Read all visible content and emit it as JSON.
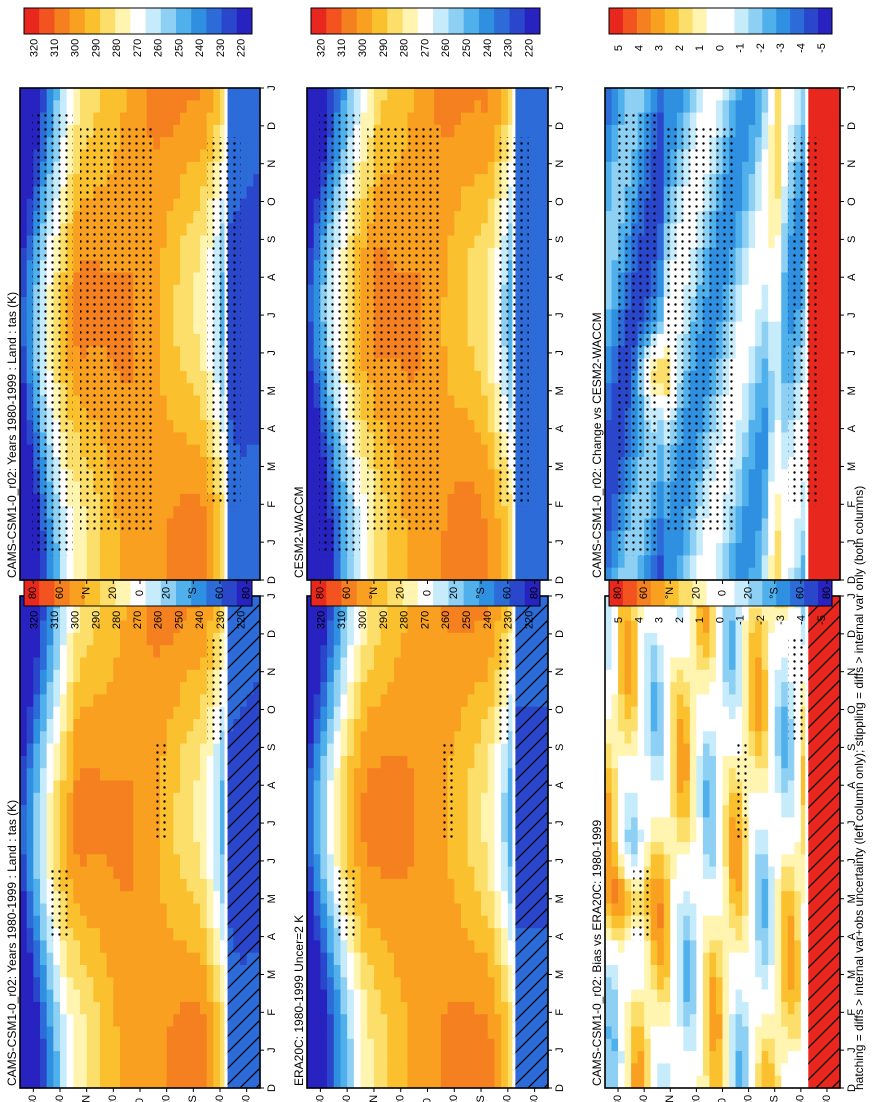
{
  "footnote": "hatching = diffs > internal var+obs uncertainty (left column only); stippling = diffs > internal var only (both columns)",
  "palettes": {
    "abs": [
      "#e8281e",
      "#f2531f",
      "#f58020",
      "#f9a021",
      "#fbc02e",
      "#fcdf6a",
      "#fff5b0",
      "#ffffff",
      "#c6ecfb",
      "#8dd0f4",
      "#4fb0ec",
      "#2f8fe0",
      "#2c6bd8",
      "#2a47cc",
      "#2722c0"
    ],
    "diff": [
      "#e8281e",
      "#f2531f",
      "#f58020",
      "#f9a021",
      "#fbc02e",
      "#fcdf6a",
      "#fff5b0",
      "#ffffff",
      "#ffffff",
      "#c6ecfb",
      "#8dd0f4",
      "#4fb0ec",
      "#2f8fe0",
      "#2c6bd8",
      "#2a47cc",
      "#2722c0"
    ]
  },
  "axes": {
    "months": [
      "D",
      "J",
      "F",
      "M",
      "A",
      "M",
      "J",
      "J",
      "A",
      "S",
      "O",
      "N",
      "D",
      "J"
    ],
    "lat_labels": [
      "80",
      "60",
      "°N",
      "20",
      "0",
      "20",
      "°S",
      "60",
      "80"
    ]
  },
  "chart_data": [
    {
      "type": "heatmap",
      "id": "p1",
      "title": "CAMS-CSM1-0_r02: Years 1980-1999 : Land : tas (K)",
      "kind": "abs",
      "model": 1,
      "hatch": true,
      "stipple": "lite",
      "colorbar": [
        "320",
        "310",
        "300",
        "290",
        "280",
        "270",
        "260",
        "250",
        "240",
        "230",
        "220"
      ]
    },
    {
      "type": "heatmap",
      "id": "p2",
      "title": "CAMS-CSM1-0_r02: Years 1980-1999 : Land : tas (K)",
      "kind": "abs",
      "model": 1,
      "hatch": false,
      "stipple": "heavy",
      "colorbar": [
        "320",
        "310",
        "300",
        "290",
        "280",
        "270",
        "260",
        "250",
        "240",
        "230",
        "220"
      ]
    },
    {
      "type": "heatmap",
      "id": "p3",
      "title": "ERA20C: 1980-1999 Uncer=2 K",
      "kind": "abs",
      "model": 0,
      "hatch": true,
      "stipple": "lite",
      "colorbar": [
        "320",
        "310",
        "300",
        "290",
        "280",
        "270",
        "260",
        "250",
        "240",
        "230",
        "220"
      ]
    },
    {
      "type": "heatmap",
      "id": "p4",
      "title": "CESM2-WACCM",
      "kind": "abs",
      "model": 2,
      "hatch": false,
      "stipple": "heavy",
      "colorbar": [
        "320",
        "310",
        "300",
        "290",
        "280",
        "270",
        "260",
        "250",
        "240",
        "230",
        "220"
      ]
    },
    {
      "type": "heatmap",
      "id": "p5",
      "title": "CAMS-CSM1-0_r02: Bias vs ERA20C: 1980-1999",
      "kind": "bias",
      "hatch": true,
      "stipple": "lite",
      "colorbar": [
        "5",
        "4",
        "3",
        "2",
        "1",
        "0",
        "-1",
        "-2",
        "-3",
        "-4",
        "-5"
      ]
    },
    {
      "type": "heatmap",
      "id": "p6",
      "title": "CAMS-CSM1-0_r02: Change vs CESM2-WACCM",
      "kind": "change",
      "hatch": false,
      "stipple": "heavy",
      "colorbar": [
        "5",
        "4",
        "3",
        "2",
        "1",
        "0",
        "-1",
        "-2",
        "-3",
        "-4",
        "-5"
      ]
    }
  ]
}
